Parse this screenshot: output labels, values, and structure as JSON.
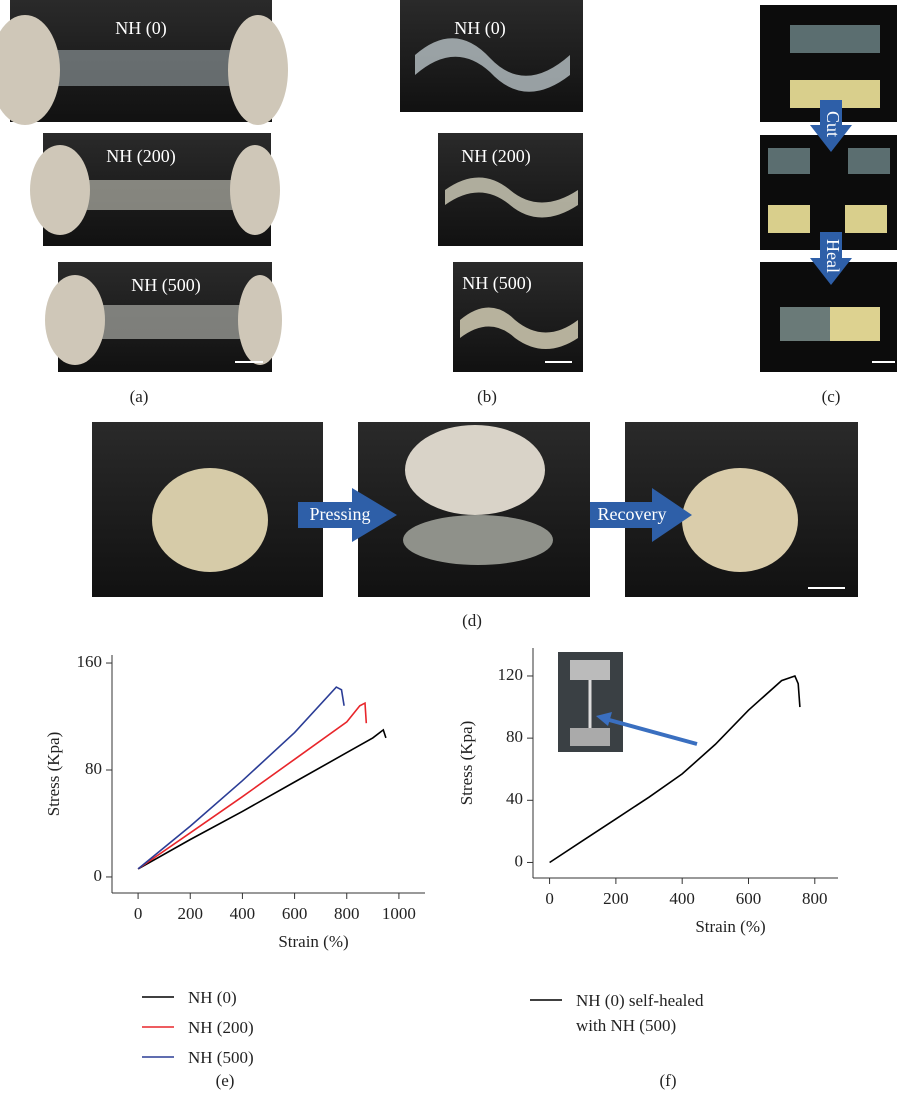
{
  "figure": {
    "panel_labels": [
      "(a)",
      "(b)",
      "(c)",
      "(d)",
      "(e)",
      "(f)"
    ]
  },
  "photos": {
    "a": [
      "NH (0)",
      "NH (200)",
      "NH (500)"
    ],
    "b": [
      "NH (0)",
      "NH (200)",
      "NH (500)"
    ],
    "c": [
      "Cut",
      "Heal"
    ],
    "d": [
      "Pressing",
      "Recovery"
    ]
  },
  "chart_data": [
    {
      "type": "line",
      "x_label": "Strain (%)",
      "y_label": "Stress (Kpa)",
      "xlim": [
        -100,
        1100
      ],
      "xticks": [
        0,
        200,
        400,
        600,
        800,
        1000
      ],
      "ylim": [
        -12,
        166
      ],
      "yticks": [
        0,
        80,
        160
      ],
      "series": [
        {
          "name": "NH (0)",
          "color": "#000000",
          "x": [
            0,
            200,
            400,
            600,
            800,
            900,
            940,
            950
          ],
          "values": [
            6,
            28,
            49,
            71,
            93,
            104,
            110,
            104
          ]
        },
        {
          "name": "NH (200)",
          "color": "#e8262b",
          "x": [
            0,
            200,
            400,
            600,
            800,
            850,
            870,
            875
          ],
          "values": [
            6,
            33,
            60,
            88,
            116,
            128,
            130,
            115
          ]
        },
        {
          "name": "NH (500)",
          "color": "#2b3d96",
          "x": [
            0,
            200,
            400,
            600,
            760,
            780,
            790
          ],
          "values": [
            6,
            38,
            72,
            108,
            142,
            140,
            128
          ]
        }
      ]
    },
    {
      "type": "line",
      "x_label": "Strain (%)",
      "y_label": "Stress (Kpa)",
      "xlim": [
        -50,
        870
      ],
      "xticks": [
        0,
        200,
        400,
        600,
        800
      ],
      "ylim": [
        -10,
        138
      ],
      "yticks": [
        0,
        40,
        80,
        120
      ],
      "series": [
        {
          "name": "NH (0) self-healed with NH (500)",
          "color": "#000000",
          "x": [
            0,
            100,
            200,
            300,
            400,
            500,
            600,
            700,
            740,
            750,
            755
          ],
          "values": [
            0,
            14,
            28,
            42,
            57,
            76,
            98,
            117,
            120,
            115,
            100
          ]
        }
      ]
    }
  ]
}
